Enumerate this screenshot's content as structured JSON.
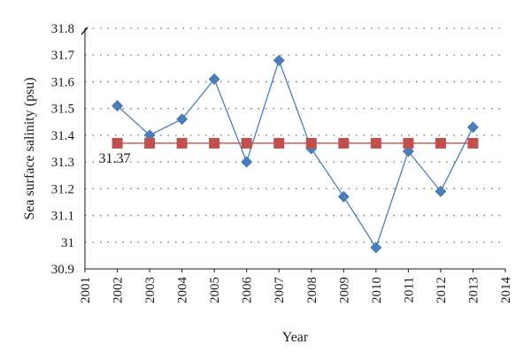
{
  "chart_data": {
    "type": "line",
    "title": "",
    "xlabel": "Year",
    "ylabel": "Sea surface salinity (psu)",
    "xlim": [
      2001,
      2014
    ],
    "ylim": [
      30.9,
      31.8
    ],
    "x_ticks": [
      2001,
      2002,
      2003,
      2004,
      2005,
      2006,
      2007,
      2008,
      2009,
      2010,
      2011,
      2012,
      2013,
      2014
    ],
    "y_ticks": [
      30.9,
      31,
      31.1,
      31.2,
      31.3,
      31.4,
      31.5,
      31.6,
      31.7,
      31.8
    ],
    "grid": "dotted horizontal",
    "legend": "none",
    "y_axis_break": true,
    "series": [
      {
        "marker": "diamond",
        "color": "#4a7ebb",
        "x": [
          2002,
          2003,
          2004,
          2005,
          2006,
          2007,
          2008,
          2009,
          2010,
          2011,
          2012,
          2013
        ],
        "y": [
          31.51,
          31.4,
          31.46,
          31.61,
          31.3,
          31.68,
          31.35,
          31.17,
          30.98,
          31.34,
          31.19,
          31.43
        ]
      },
      {
        "marker": "square",
        "color": "#c0504d",
        "x": [
          2002,
          2003,
          2004,
          2005,
          2006,
          2007,
          2008,
          2009,
          2010,
          2011,
          2012,
          2013
        ],
        "y": [
          31.37,
          31.37,
          31.37,
          31.37,
          31.37,
          31.37,
          31.37,
          31.37,
          31.37,
          31.37,
          31.37,
          31.37
        ]
      }
    ],
    "annotations": [
      {
        "text": "31.37",
        "x": 2002,
        "y": 31.37
      }
    ]
  }
}
